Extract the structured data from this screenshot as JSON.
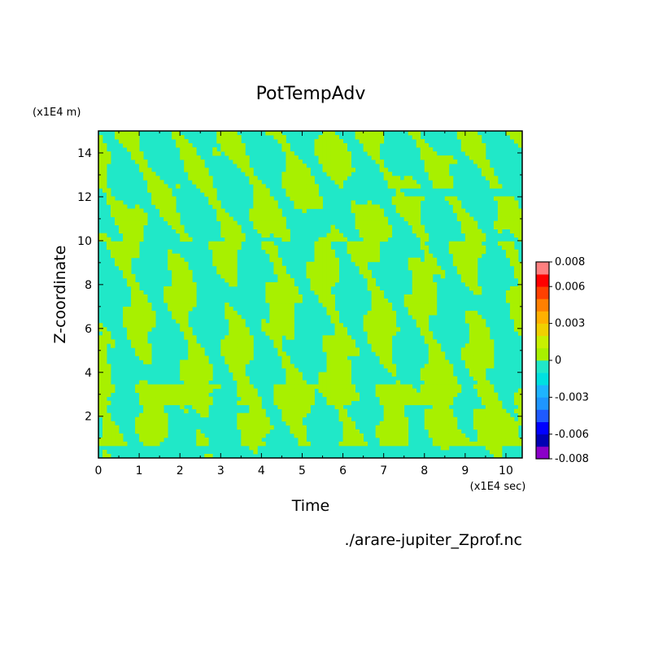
{
  "chart_data": {
    "type": "heatmap",
    "title": "PotTempAdv",
    "xlabel": "Time",
    "ylabel": "Z-coordinate",
    "x_unit": "(x1E4 sec)",
    "y_unit": "(x1E4 m)",
    "x_ticks": [
      "0",
      "1",
      "2",
      "3",
      "4",
      "5",
      "6",
      "7",
      "8",
      "9",
      "10"
    ],
    "y_ticks": [
      "2",
      "4",
      "6",
      "8",
      "10",
      "12",
      "14"
    ],
    "xlim": [
      0,
      10.4
    ],
    "ylim": [
      0.1,
      15
    ],
    "source_file": "./arare-jupiter_Zprof.nc",
    "colorbar": {
      "tick_labels": [
        "0.008",
        "0.006",
        "0.003",
        "0",
        "-0.003",
        "-0.006",
        "-0.008"
      ],
      "tick_values": [
        0.008,
        0.006,
        0.003,
        0,
        -0.003,
        -0.006,
        -0.008
      ],
      "levels": [
        -0.008,
        -0.007,
        -0.006,
        -0.005,
        -0.004,
        -0.003,
        -0.002,
        -0.001,
        0,
        0.001,
        0.002,
        0.003,
        0.004,
        0.005,
        0.006,
        0.007,
        0.008
      ],
      "colors": [
        "#8b00c8",
        "#0000b4",
        "#0000ff",
        "#1e5aff",
        "#1e96ff",
        "#1eb4ff",
        "#00e0e0",
        "#20e8c8",
        "#a8f000",
        "#c8f000",
        "#f0d000",
        "#ffb000",
        "#ff8000",
        "#ff4000",
        "#ff0000",
        "#ff8080"
      ]
    },
    "dominant_colors": {
      "negative_small": "#20e8c8",
      "positive_small": "#a8f000"
    }
  }
}
